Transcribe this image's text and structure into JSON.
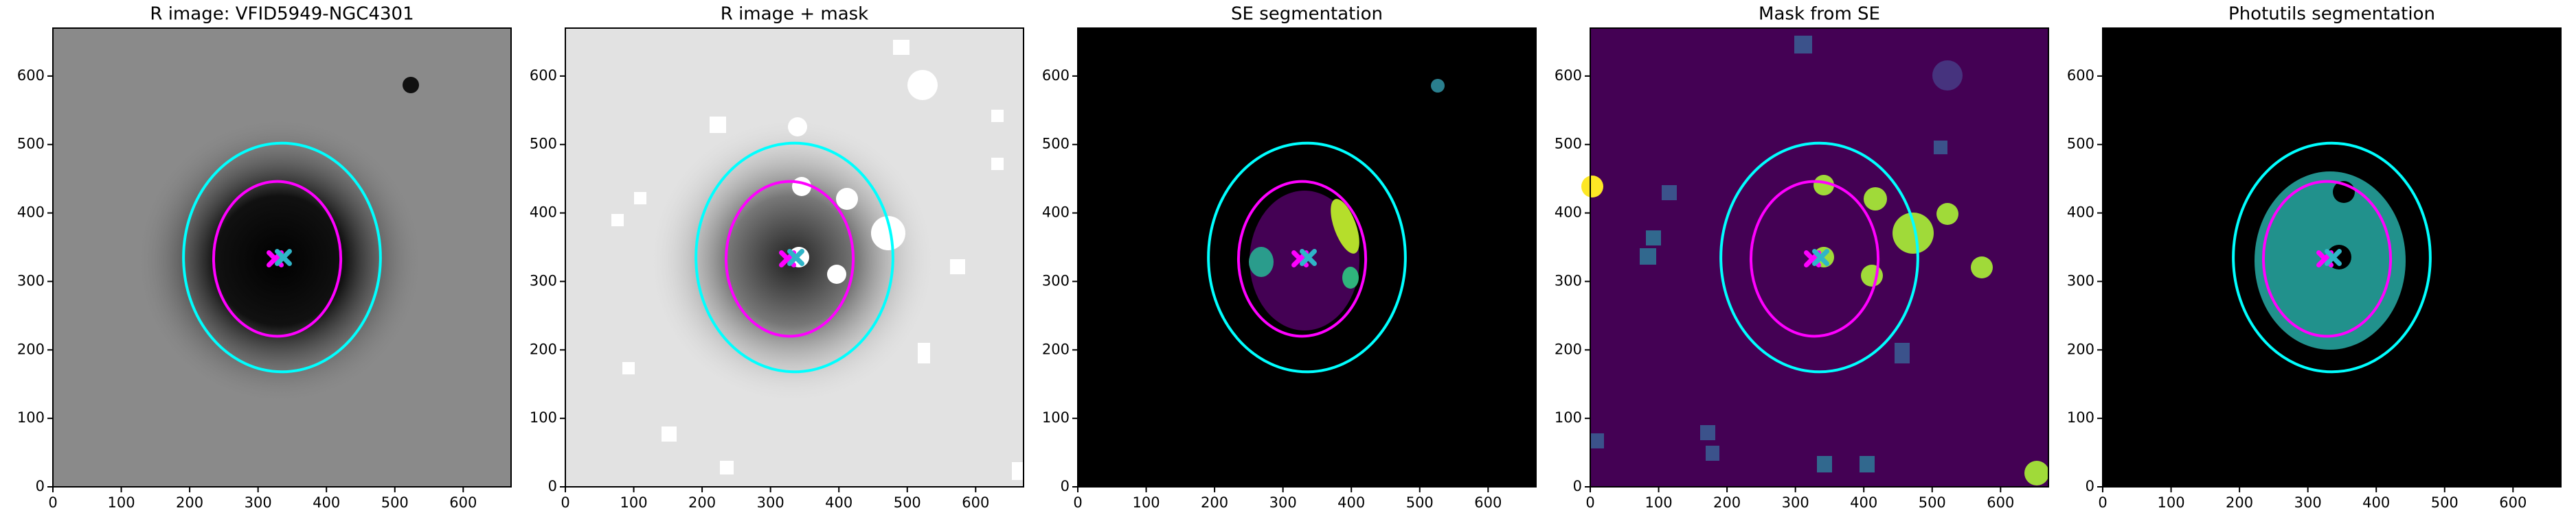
{
  "chart_data": [
    {
      "type": "image",
      "title": "R image: VFID5949-NGC4301",
      "background": "#8a8a8a",
      "xlim": [
        0,
        670
      ],
      "ylim": [
        0,
        670
      ],
      "xticks": [
        0,
        100,
        200,
        300,
        400,
        500,
        600
      ],
      "yticks": [
        0,
        100,
        200,
        300,
        400,
        500,
        600
      ],
      "ellipses": [
        {
          "color": "cyan",
          "cx": 335,
          "cy": 335,
          "rx": 144,
          "ry": 167
        },
        {
          "color": "magenta",
          "cx": 328,
          "cy": 333,
          "rx": 93,
          "ry": 113
        }
      ],
      "markers": [
        {
          "color": "magenta",
          "x": 325,
          "y": 333
        },
        {
          "color": "#2fb5c8",
          "x": 337,
          "y": 335
        }
      ]
    },
    {
      "type": "image",
      "title": "R image + mask",
      "background": "#e2e2e2",
      "xlim": [
        0,
        670
      ],
      "ylim": [
        0,
        670
      ],
      "xticks": [
        0,
        100,
        200,
        300,
        400,
        500,
        600
      ],
      "yticks": [
        0,
        100,
        200,
        300,
        400,
        500,
        600
      ],
      "ellipses": [
        {
          "color": "cyan",
          "cx": 335,
          "cy": 335,
          "rx": 144,
          "ry": 167
        },
        {
          "color": "magenta",
          "cx": 328,
          "cy": 333,
          "rx": 93,
          "ry": 113
        }
      ],
      "markers": [
        {
          "color": "magenta",
          "x": 325,
          "y": 333
        },
        {
          "color": "#2fb5c8",
          "x": 337,
          "y": 335
        }
      ]
    },
    {
      "type": "image",
      "title": "SE segmentation",
      "background": "#000000",
      "xlim": [
        0,
        670
      ],
      "ylim": [
        0,
        670
      ],
      "xticks": [
        0,
        100,
        200,
        300,
        400,
        500,
        600
      ],
      "yticks": [
        0,
        100,
        200,
        300,
        400,
        500,
        600
      ],
      "ellipses": [
        {
          "color": "cyan",
          "cx": 335,
          "cy": 335,
          "rx": 144,
          "ry": 167
        },
        {
          "color": "magenta",
          "cx": 328,
          "cy": 333,
          "rx": 93,
          "ry": 113
        }
      ],
      "markers": [
        {
          "color": "magenta",
          "x": 325,
          "y": 333
        },
        {
          "color": "#2fb5c8",
          "x": 337,
          "y": 335
        }
      ]
    },
    {
      "type": "image",
      "title": "Mask from SE",
      "background": "#440154",
      "xlim": [
        0,
        670
      ],
      "ylim": [
        0,
        670
      ],
      "xticks": [
        0,
        100,
        200,
        300,
        400,
        500,
        600
      ],
      "yticks": [
        0,
        100,
        200,
        300,
        400,
        500,
        600
      ],
      "ellipses": [
        {
          "color": "cyan",
          "cx": 335,
          "cy": 335,
          "rx": 144,
          "ry": 167
        },
        {
          "color": "magenta",
          "cx": 328,
          "cy": 333,
          "rx": 93,
          "ry": 113
        }
      ],
      "markers": [
        {
          "color": "magenta",
          "x": 325,
          "y": 333
        },
        {
          "color": "#2fb5c8",
          "x": 337,
          "y": 335
        }
      ]
    },
    {
      "type": "image",
      "title": "Photutils segmentation",
      "background": "#000000",
      "xlim": [
        0,
        670
      ],
      "ylim": [
        0,
        670
      ],
      "xticks": [
        0,
        100,
        200,
        300,
        400,
        500,
        600
      ],
      "yticks": [
        0,
        100,
        200,
        300,
        400,
        500,
        600
      ],
      "ellipses": [
        {
          "color": "cyan",
          "cx": 335,
          "cy": 335,
          "rx": 144,
          "ry": 167
        },
        {
          "color": "magenta",
          "cx": 328,
          "cy": 333,
          "rx": 93,
          "ry": 113
        }
      ],
      "markers": [
        {
          "color": "magenta",
          "x": 325,
          "y": 333
        },
        {
          "color": "#2fb5c8",
          "x": 337,
          "y": 335
        }
      ]
    }
  ]
}
